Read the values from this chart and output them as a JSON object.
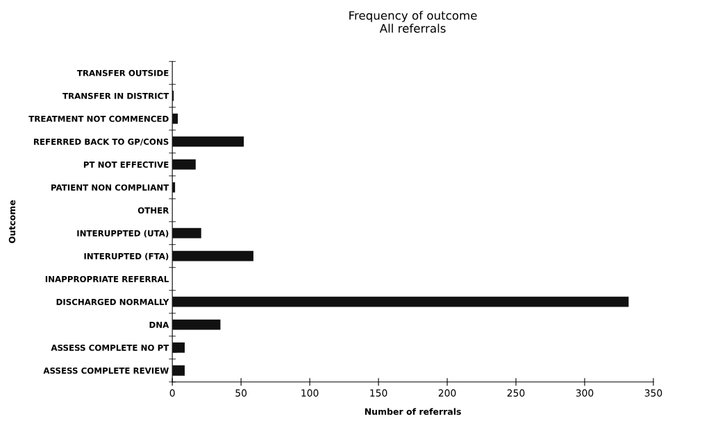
{
  "chart_data": {
    "type": "bar",
    "orientation": "horizontal",
    "title": "Frequency of outcome\nAll referrals",
    "xlabel": "Number of referrals",
    "ylabel": "Outcome",
    "categories": [
      "TRANSFER OUTSIDE",
      "TRANSFER IN DISTRICT",
      "TREATMENT NOT COMMENCED",
      "REFERRED BACK TO GP/CONS",
      "PT NOT EFFECTIVE",
      "PATIENT NON COMPLIANT",
      "OTHER",
      "INTERUPPTED (UTA)",
      "INTERUPTED (FTA)",
      "INAPPROPRIATE REFERRAL",
      "DISCHARGED NORMALLY",
      "DNA",
      "ASSESS COMPLETE NO PT",
      "ASSESS COMPLETE REVIEW"
    ],
    "values": [
      0,
      1,
      4,
      52,
      17,
      2,
      0,
      21,
      59,
      0,
      332,
      35,
      9,
      9
    ],
    "color": "#111111",
    "xlim": [
      0,
      350
    ],
    "xticks": [
      0,
      50,
      100,
      150,
      200,
      250,
      300,
      350
    ],
    "grid": false,
    "legend": false
  }
}
